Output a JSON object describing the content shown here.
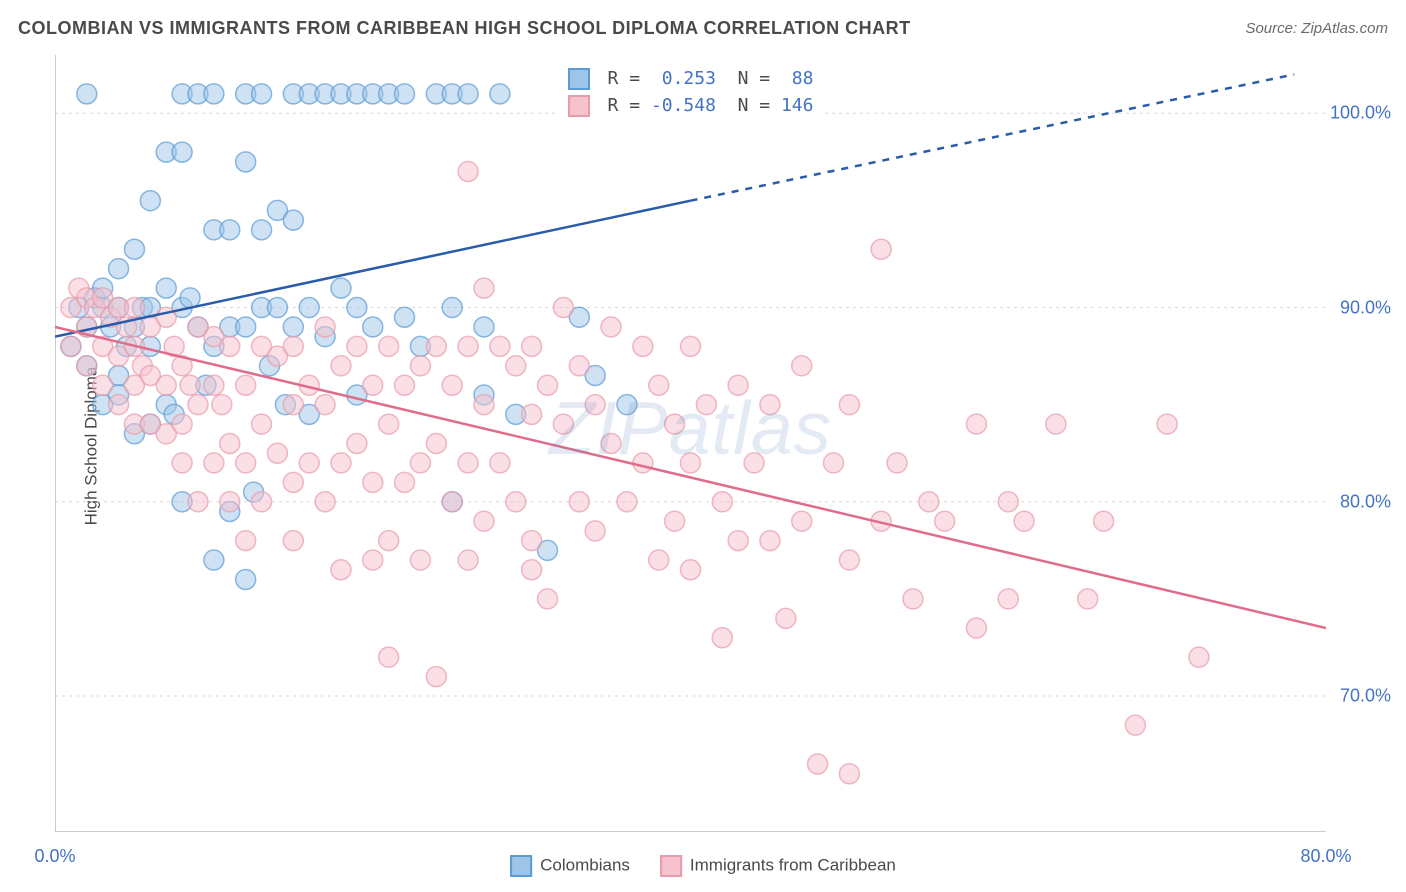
{
  "title": "COLOMBIAN VS IMMIGRANTS FROM CARIBBEAN HIGH SCHOOL DIPLOMA CORRELATION CHART",
  "source": "Source: ZipAtlas.com",
  "y_axis_label": "High School Diploma",
  "watermark": "ZIPatlas",
  "chart": {
    "type": "scatter",
    "background_color": "#ffffff",
    "grid_color": "#d8d8d8",
    "grid_dash": "3,4",
    "axis_color": "#9a9a9a",
    "label_color": "#4472c4",
    "xlim": [
      0,
      80
    ],
    "ylim": [
      63,
      103
    ],
    "x_ticks": [
      0,
      10,
      20,
      30,
      40,
      50,
      60,
      70,
      80
    ],
    "x_tick_labels": {
      "0": "0.0%",
      "80": "80.0%"
    },
    "y_ticks": [
      70,
      80,
      90,
      100
    ],
    "y_tick_labels": {
      "70": "70.0%",
      "80": "80.0%",
      "90": "90.0%",
      "100": "100.0%"
    },
    "marker_radius": 10,
    "marker_opacity": 0.5,
    "marker_stroke_width": 1.5,
    "series": [
      {
        "name": "Colombians",
        "color_fill": "#9ec5e8",
        "color_stroke": "#5b9bd5",
        "line_color": "#2a5caa",
        "line_width": 2.5,
        "R": "0.253",
        "N": "88",
        "trend": {
          "x1": 0,
          "y1": 88.5,
          "x2": 40,
          "y2": 95.5,
          "x2_ext": 78,
          "y2_ext": 102
        },
        "points": [
          [
            1,
            88
          ],
          [
            1.5,
            90
          ],
          [
            2,
            89
          ],
          [
            2,
            87
          ],
          [
            2,
            101
          ],
          [
            2.5,
            90.5
          ],
          [
            3,
            90
          ],
          [
            3,
            85
          ],
          [
            3,
            91
          ],
          [
            3.5,
            89
          ],
          [
            4,
            90
          ],
          [
            4,
            86.5
          ],
          [
            4,
            85.5
          ],
          [
            4,
            92
          ],
          [
            4.5,
            88
          ],
          [
            5,
            93
          ],
          [
            5,
            83.5
          ],
          [
            5,
            89
          ],
          [
            5.5,
            90
          ],
          [
            6,
            95.5
          ],
          [
            6,
            90
          ],
          [
            6,
            88
          ],
          [
            6,
            84
          ],
          [
            7,
            98
          ],
          [
            7,
            91
          ],
          [
            7,
            85
          ],
          [
            7.5,
            84.5
          ],
          [
            8,
            101
          ],
          [
            8,
            98
          ],
          [
            8,
            90
          ],
          [
            8,
            80
          ],
          [
            8.5,
            90.5
          ],
          [
            9,
            101
          ],
          [
            9,
            89
          ],
          [
            9.5,
            86
          ],
          [
            10,
            101
          ],
          [
            10,
            94
          ],
          [
            10,
            88
          ],
          [
            10,
            77
          ],
          [
            11,
            94
          ],
          [
            11,
            89
          ],
          [
            11,
            79.5
          ],
          [
            12,
            101
          ],
          [
            12,
            97.5
          ],
          [
            12,
            89
          ],
          [
            12,
            76
          ],
          [
            12.5,
            80.5
          ],
          [
            13,
            101
          ],
          [
            13,
            94
          ],
          [
            13,
            90
          ],
          [
            13.5,
            87
          ],
          [
            14,
            95
          ],
          [
            14,
            90
          ],
          [
            14.5,
            85
          ],
          [
            15,
            101
          ],
          [
            15,
            94.5
          ],
          [
            15,
            89
          ],
          [
            16,
            101
          ],
          [
            16,
            90
          ],
          [
            16,
            84.5
          ],
          [
            17,
            101
          ],
          [
            17,
            88.5
          ],
          [
            18,
            101
          ],
          [
            18,
            91
          ],
          [
            19,
            101
          ],
          [
            19,
            90
          ],
          [
            19,
            85.5
          ],
          [
            20,
            101
          ],
          [
            20,
            89
          ],
          [
            21,
            101
          ],
          [
            22,
            101
          ],
          [
            22,
            89.5
          ],
          [
            23,
            88
          ],
          [
            24,
            101
          ],
          [
            25,
            101
          ],
          [
            25,
            90
          ],
          [
            25,
            80
          ],
          [
            26,
            101
          ],
          [
            27,
            89
          ],
          [
            27,
            85.5
          ],
          [
            28,
            101
          ],
          [
            29,
            84.5
          ],
          [
            31,
            77.5
          ],
          [
            33,
            101
          ],
          [
            33,
            89.5
          ],
          [
            34,
            86.5
          ],
          [
            35,
            101
          ],
          [
            36,
            85
          ]
        ]
      },
      {
        "name": "Immigrants from Caribbean",
        "color_fill": "#f5c2cd",
        "color_stroke": "#e89ba9",
        "line_color": "#e06c8b",
        "line_width": 2.5,
        "R": "-0.548",
        "N": "146",
        "trend": {
          "x1": 0,
          "y1": 89,
          "x2": 80,
          "y2": 73.5
        },
        "points": [
          [
            1,
            90
          ],
          [
            1,
            88
          ],
          [
            1.5,
            91
          ],
          [
            2,
            90.5
          ],
          [
            2,
            89
          ],
          [
            2,
            87
          ],
          [
            2.5,
            90
          ],
          [
            3,
            90.5
          ],
          [
            3,
            88
          ],
          [
            3,
            86
          ],
          [
            3.5,
            89.5
          ],
          [
            4,
            90
          ],
          [
            4,
            87.5
          ],
          [
            4,
            85
          ],
          [
            4.5,
            89
          ],
          [
            5,
            90
          ],
          [
            5,
            88
          ],
          [
            5,
            86
          ],
          [
            5,
            84
          ],
          [
            5.5,
            87
          ],
          [
            6,
            89
          ],
          [
            6,
            86.5
          ],
          [
            6,
            84
          ],
          [
            7,
            89.5
          ],
          [
            7,
            86
          ],
          [
            7,
            83.5
          ],
          [
            7.5,
            88
          ],
          [
            8,
            87
          ],
          [
            8,
            84
          ],
          [
            8,
            82
          ],
          [
            8.5,
            86
          ],
          [
            9,
            89
          ],
          [
            9,
            85
          ],
          [
            9,
            80
          ],
          [
            10,
            88.5
          ],
          [
            10,
            86
          ],
          [
            10,
            82
          ],
          [
            10.5,
            85
          ],
          [
            11,
            88
          ],
          [
            11,
            83
          ],
          [
            11,
            80
          ],
          [
            12,
            86
          ],
          [
            12,
            82
          ],
          [
            12,
            78
          ],
          [
            13,
            88
          ],
          [
            13,
            84
          ],
          [
            13,
            80
          ],
          [
            14,
            87.5
          ],
          [
            14,
            82.5
          ],
          [
            15,
            88
          ],
          [
            15,
            85
          ],
          [
            15,
            81
          ],
          [
            15,
            78
          ],
          [
            16,
            86
          ],
          [
            16,
            82
          ],
          [
            17,
            89
          ],
          [
            17,
            85
          ],
          [
            17,
            80
          ],
          [
            18,
            87
          ],
          [
            18,
            82
          ],
          [
            18,
            76.5
          ],
          [
            19,
            88
          ],
          [
            19,
            83
          ],
          [
            20,
            86
          ],
          [
            20,
            81
          ],
          [
            20,
            77
          ],
          [
            21,
            88
          ],
          [
            21,
            84
          ],
          [
            21,
            78
          ],
          [
            21,
            72
          ],
          [
            22,
            86
          ],
          [
            22,
            81
          ],
          [
            23,
            87
          ],
          [
            23,
            82
          ],
          [
            23,
            77
          ],
          [
            24,
            88
          ],
          [
            24,
            83
          ],
          [
            24,
            71
          ],
          [
            25,
            86
          ],
          [
            25,
            80
          ],
          [
            26,
            97
          ],
          [
            26,
            88
          ],
          [
            26,
            82
          ],
          [
            26,
            77
          ],
          [
            27,
            91
          ],
          [
            27,
            85
          ],
          [
            27,
            79
          ],
          [
            28,
            88
          ],
          [
            28,
            82
          ],
          [
            29,
            87
          ],
          [
            29,
            80
          ],
          [
            30,
            88
          ],
          [
            30,
            84.5
          ],
          [
            30,
            78
          ],
          [
            30,
            76.5
          ],
          [
            31,
            86
          ],
          [
            31,
            75
          ],
          [
            32,
            90
          ],
          [
            32,
            84
          ],
          [
            33,
            87
          ],
          [
            33,
            80
          ],
          [
            34,
            85
          ],
          [
            34,
            78.5
          ],
          [
            35,
            89
          ],
          [
            35,
            83
          ],
          [
            36,
            80
          ],
          [
            37,
            88
          ],
          [
            37,
            82
          ],
          [
            38,
            86
          ],
          [
            38,
            77
          ],
          [
            39,
            84
          ],
          [
            39,
            79
          ],
          [
            40,
            88
          ],
          [
            40,
            82
          ],
          [
            40,
            76.5
          ],
          [
            41,
            85
          ],
          [
            42,
            80
          ],
          [
            42,
            73
          ],
          [
            43,
            86
          ],
          [
            43,
            78
          ],
          [
            44,
            82
          ],
          [
            45,
            85
          ],
          [
            45,
            78
          ],
          [
            46,
            74
          ],
          [
            47,
            87
          ],
          [
            47,
            79
          ],
          [
            48,
            66.5
          ],
          [
            49,
            82
          ],
          [
            50,
            85
          ],
          [
            50,
            77
          ],
          [
            50,
            66
          ],
          [
            52,
            93
          ],
          [
            52,
            79
          ],
          [
            53,
            82
          ],
          [
            54,
            75
          ],
          [
            55,
            80
          ],
          [
            56,
            79
          ],
          [
            58,
            84
          ],
          [
            58,
            73.5
          ],
          [
            60,
            80
          ],
          [
            60,
            75
          ],
          [
            61,
            79
          ],
          [
            63,
            84
          ],
          [
            65,
            75
          ],
          [
            66,
            79
          ],
          [
            68,
            68.5
          ],
          [
            70,
            84
          ],
          [
            72,
            72
          ]
        ]
      }
    ],
    "legend_box": {
      "R_label": "R =",
      "N_label": "N ="
    }
  }
}
